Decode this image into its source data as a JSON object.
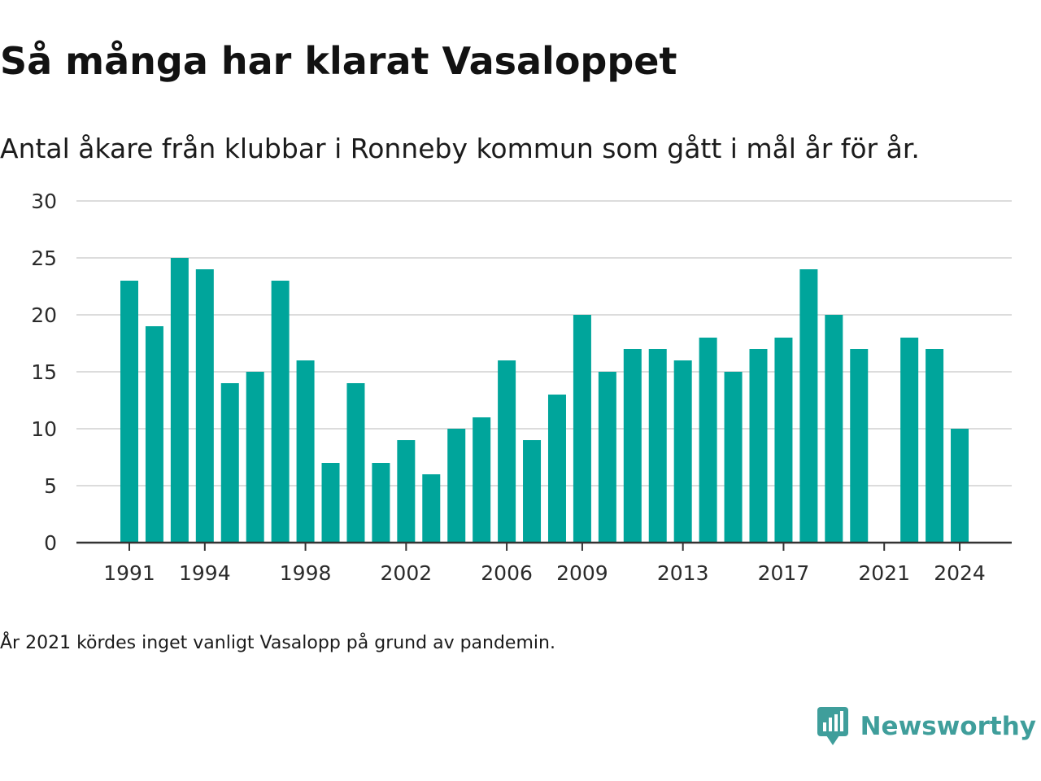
{
  "title": "Så många har klarat Vasaloppet",
  "subtitle": "Antal åkare från klubbar i Ronneby kommun som gått i mål år för år.",
  "footnote": "År 2021 kördes inget vanligt Vasalopp på grund av pandemin.",
  "brand": {
    "name": "Newsworthy",
    "logo_icon": "newsworthy-logo-icon",
    "color": "#3f9e9b"
  },
  "chart_data": {
    "type": "bar",
    "title": "Så många har klarat Vasaloppet",
    "subtitle": "Antal åkare från klubbar i Ronneby kommun som gått i mål år för år.",
    "xlabel": "",
    "ylabel": "",
    "ylim": [
      0,
      30
    ],
    "yticks": [
      0,
      5,
      10,
      15,
      20,
      25,
      30
    ],
    "xticks": [
      1991,
      1994,
      1998,
      2002,
      2006,
      2009,
      2013,
      2017,
      2021,
      2024
    ],
    "grid": true,
    "legend": "none",
    "bar_color": "#00a59b",
    "categories": [
      1991,
      1992,
      1993,
      1994,
      1995,
      1996,
      1997,
      1998,
      1999,
      2000,
      2001,
      2002,
      2003,
      2004,
      2005,
      2006,
      2007,
      2008,
      2009,
      2010,
      2011,
      2012,
      2013,
      2014,
      2015,
      2016,
      2017,
      2018,
      2019,
      2020,
      2021,
      2022,
      2023,
      2024
    ],
    "values": [
      23,
      19,
      25,
      24,
      14,
      15,
      23,
      16,
      7,
      14,
      7,
      9,
      6,
      10,
      11,
      16,
      9,
      13,
      20,
      15,
      17,
      17,
      16,
      18,
      15,
      17,
      18,
      24,
      20,
      17,
      null,
      18,
      17,
      10
    ]
  }
}
